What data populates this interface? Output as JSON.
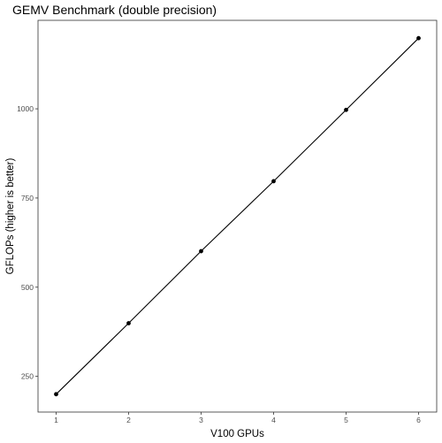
{
  "chart_data": {
    "type": "line",
    "title": "GEMV Benchmark (double precision)",
    "xlabel": "V100 GPUs",
    "ylabel": "GFLOPs (higher is better)",
    "x": [
      1,
      2,
      3,
      4,
      5,
      6
    ],
    "series": [
      {
        "values": [
          200,
          399,
          601,
          797,
          997,
          1198
        ]
      }
    ],
    "xticks": [
      "1",
      "2",
      "3",
      "4",
      "5",
      "6"
    ],
    "yticks": [
      "250",
      "500",
      "750",
      "1000"
    ],
    "xlim": [
      0.75,
      6.25
    ],
    "ylim": [
      150,
      1248
    ],
    "grid": false,
    "line_color": "#000000",
    "point_color": "#000000"
  }
}
